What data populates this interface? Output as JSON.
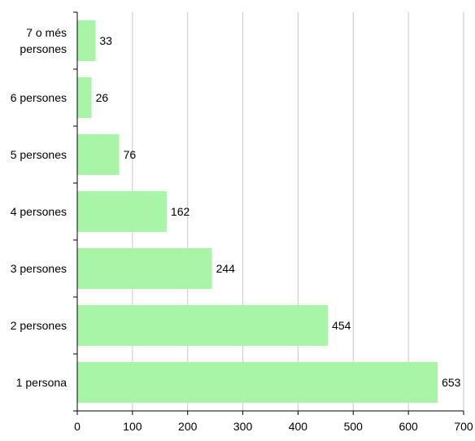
{
  "chart_data": {
    "type": "bar",
    "orientation": "horizontal",
    "categories": [
      "7 o més persones",
      "6 persones",
      "5 persones",
      "4 persones",
      "3 persones",
      "2 persones",
      "1 persona"
    ],
    "category_lines": [
      [
        "7 o més",
        "persones"
      ],
      [
        "6 persones"
      ],
      [
        "5 persones"
      ],
      [
        "4 persones"
      ],
      [
        "3 persones"
      ],
      [
        "2 persones"
      ],
      [
        "1 persona"
      ]
    ],
    "values": [
      33,
      26,
      76,
      162,
      244,
      454,
      653
    ],
    "value_labels": [
      "33",
      "26",
      "76",
      "162",
      "244",
      "454",
      "653"
    ],
    "xticks": [
      "0",
      "100",
      "200",
      "300",
      "400",
      "500",
      "600",
      "700"
    ],
    "xlim": [
      0,
      700
    ],
    "title": "",
    "xlabel": "",
    "ylabel": "",
    "grid": "vertical",
    "legend": "none",
    "colors": {
      "bar": "#a8f5a8",
      "grid": "#c8c8c8",
      "axis": "#000000"
    }
  }
}
